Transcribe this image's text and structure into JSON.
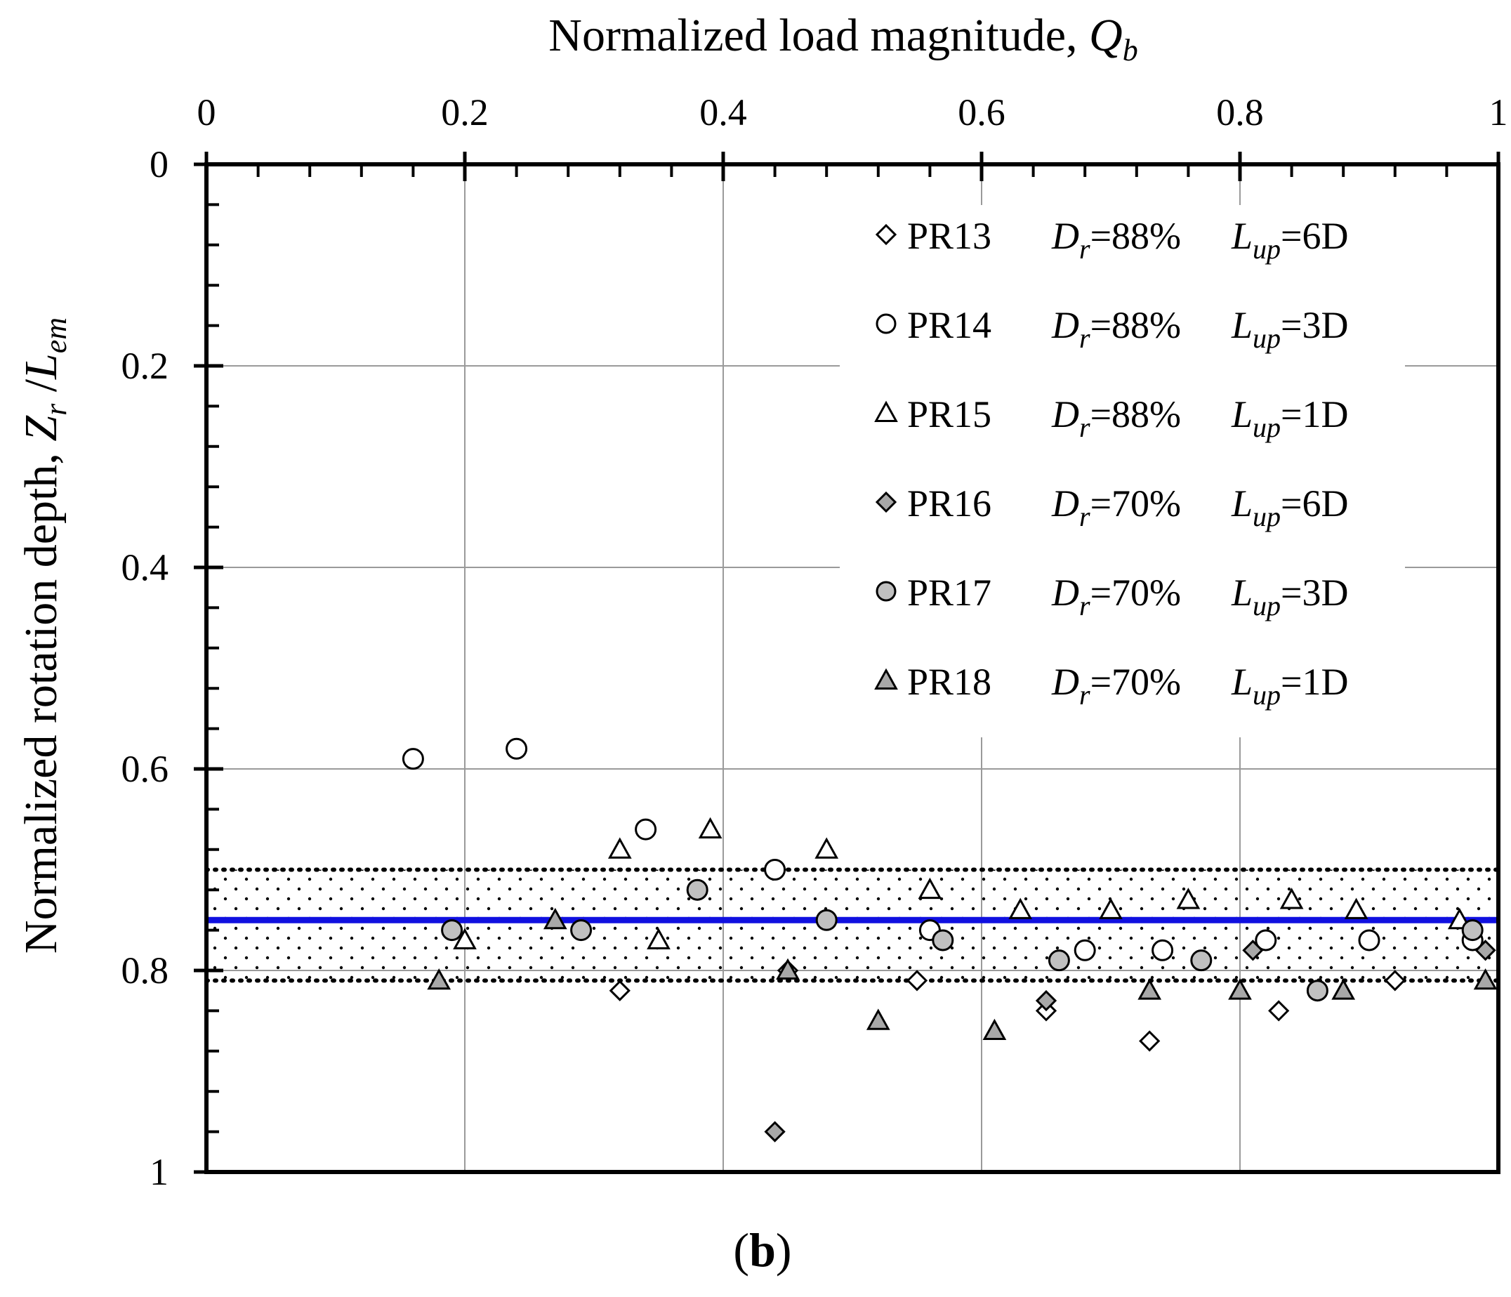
{
  "chart_data": {
    "type": "scatter",
    "xlabel": "Normalized load magnitude, ",
    "xlabel_var": "Q",
    "xlabel_sub": "b",
    "ylabel_prefix": "Normalized rotation depth, ",
    "ylabel_var1": "Z",
    "ylabel_sub1": "r",
    "ylabel_slash": " /",
    "ylabel_var2": "L",
    "ylabel_sub2": "em",
    "caption_open": "(",
    "caption_letter": "b",
    "caption_close": ")",
    "xlim": [
      0,
      1
    ],
    "ylim": [
      0,
      1
    ],
    "y_inverted": true,
    "x_axis_position": "top",
    "x_ticks": [
      0,
      0.2,
      0.4,
      0.6,
      0.8,
      1
    ],
    "x_tick_labels": [
      "0",
      "0.2",
      "0.4",
      "0.6",
      "0.8",
      "1"
    ],
    "y_ticks": [
      0,
      0.2,
      0.4,
      0.6,
      0.8,
      1
    ],
    "y_tick_labels": [
      "0",
      "0.2",
      "0.4",
      "0.6",
      "0.8",
      "1"
    ],
    "grid": true,
    "reference_lines": [
      {
        "name": "mean",
        "y": 0.75,
        "style": "solid",
        "color": "#1010e0"
      },
      {
        "name": "upper-bound",
        "y": 0.7,
        "style": "dotted",
        "color": "#000000"
      },
      {
        "name": "lower-bound",
        "y": 0.81,
        "style": "dotted",
        "color": "#000000"
      }
    ],
    "band": {
      "y_from": 0.7,
      "y_to": 0.81,
      "pattern": "dotted"
    },
    "legend_position": "top-right",
    "series": [
      {
        "name": "PR13",
        "marker": "diamond",
        "fill": "#ffffff",
        "dr": "88%",
        "lup": "6D",
        "points": [
          [
            0.32,
            0.82
          ],
          [
            0.45,
            0.8
          ],
          [
            0.55,
            0.81
          ],
          [
            0.65,
            0.84
          ],
          [
            0.73,
            0.87
          ],
          [
            0.83,
            0.84
          ],
          [
            0.92,
            0.81
          ]
        ]
      },
      {
        "name": "PR14",
        "marker": "circle",
        "fill": "#ffffff",
        "dr": "88%",
        "lup": "3D",
        "points": [
          [
            0.16,
            0.59
          ],
          [
            0.24,
            0.58
          ],
          [
            0.34,
            0.66
          ],
          [
            0.44,
            0.7
          ],
          [
            0.56,
            0.76
          ],
          [
            0.68,
            0.78
          ],
          [
            0.74,
            0.78
          ],
          [
            0.82,
            0.77
          ],
          [
            0.9,
            0.77
          ],
          [
            0.98,
            0.77
          ]
        ]
      },
      {
        "name": "PR15",
        "marker": "triangle",
        "fill": "#ffffff",
        "dr": "88%",
        "lup": "1D",
        "points": [
          [
            0.2,
            0.77
          ],
          [
            0.32,
            0.68
          ],
          [
            0.35,
            0.77
          ],
          [
            0.39,
            0.66
          ],
          [
            0.48,
            0.68
          ],
          [
            0.56,
            0.72
          ],
          [
            0.63,
            0.74
          ],
          [
            0.7,
            0.74
          ],
          [
            0.76,
            0.73
          ],
          [
            0.84,
            0.73
          ],
          [
            0.89,
            0.74
          ],
          [
            0.97,
            0.75
          ]
        ]
      },
      {
        "name": "PR16",
        "marker": "diamond",
        "fill": "#a8a8a8",
        "dr": "70%",
        "lup": "6D",
        "points": [
          [
            0.44,
            0.96
          ],
          [
            0.65,
            0.83
          ],
          [
            0.81,
            0.78
          ],
          [
            0.99,
            0.78
          ]
        ]
      },
      {
        "name": "PR17",
        "marker": "circle",
        "fill": "#c0c0c0",
        "dr": "70%",
        "lup": "3D",
        "points": [
          [
            0.19,
            0.76
          ],
          [
            0.29,
            0.76
          ],
          [
            0.38,
            0.72
          ],
          [
            0.48,
            0.75
          ],
          [
            0.57,
            0.77
          ],
          [
            0.66,
            0.79
          ],
          [
            0.77,
            0.79
          ],
          [
            0.86,
            0.82
          ],
          [
            0.98,
            0.76
          ]
        ]
      },
      {
        "name": "PR18",
        "marker": "triangle",
        "fill": "#a8a8a8",
        "dr": "70%",
        "lup": "1D",
        "points": [
          [
            0.18,
            0.81
          ],
          [
            0.27,
            0.75
          ],
          [
            0.45,
            0.8
          ],
          [
            0.52,
            0.85
          ],
          [
            0.61,
            0.86
          ],
          [
            0.73,
            0.82
          ],
          [
            0.8,
            0.82
          ],
          [
            0.88,
            0.82
          ],
          [
            0.99,
            0.81
          ]
        ]
      }
    ]
  }
}
